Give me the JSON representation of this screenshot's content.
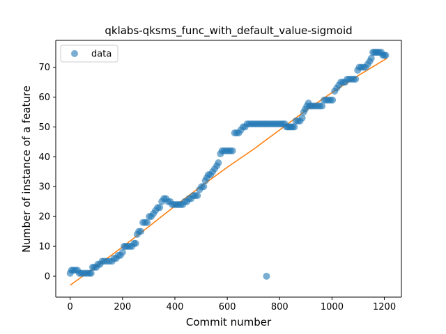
{
  "chart_data": {
    "type": "scatter",
    "title": "qklabs-qksms_func_with_default_value-sigmoid",
    "xlabel": "Commit number",
    "ylabel": "Number of instance of a feature",
    "xlim": [
      -55,
      1265
    ],
    "ylim": [
      -7,
      79
    ],
    "xticks": [
      0,
      200,
      400,
      600,
      800,
      1000,
      1200
    ],
    "yticks": [
      0,
      10,
      20,
      30,
      40,
      50,
      60,
      70
    ],
    "legend": {
      "entries": [
        "data"
      ],
      "placement": "top-left"
    },
    "grid": false,
    "colors": {
      "data": "#1f77b4",
      "fit": "#ff7f0e"
    },
    "series": [
      {
        "name": "data",
        "kind": "scatter",
        "points": [
          [
            0,
            1
          ],
          [
            5,
            2
          ],
          [
            12,
            2
          ],
          [
            20,
            2
          ],
          [
            28,
            2
          ],
          [
            35,
            1
          ],
          [
            42,
            1
          ],
          [
            50,
            1
          ],
          [
            58,
            1
          ],
          [
            66,
            1
          ],
          [
            74,
            1
          ],
          [
            80,
            1
          ],
          [
            86,
            3
          ],
          [
            92,
            3
          ],
          [
            100,
            3
          ],
          [
            106,
            4
          ],
          [
            114,
            4
          ],
          [
            122,
            5
          ],
          [
            130,
            5
          ],
          [
            140,
            5
          ],
          [
            150,
            5
          ],
          [
            160,
            5
          ],
          [
            168,
            6
          ],
          [
            176,
            6
          ],
          [
            184,
            7
          ],
          [
            192,
            7
          ],
          [
            200,
            8
          ],
          [
            206,
            10
          ],
          [
            212,
            10
          ],
          [
            220,
            10
          ],
          [
            228,
            10
          ],
          [
            236,
            10
          ],
          [
            244,
            11
          ],
          [
            250,
            11
          ],
          [
            256,
            14
          ],
          [
            262,
            15
          ],
          [
            270,
            15
          ],
          [
            278,
            18
          ],
          [
            286,
            18
          ],
          [
            294,
            18
          ],
          [
            302,
            20
          ],
          [
            310,
            20
          ],
          [
            318,
            21
          ],
          [
            326,
            22
          ],
          [
            334,
            23
          ],
          [
            342,
            23
          ],
          [
            350,
            25
          ],
          [
            358,
            26
          ],
          [
            366,
            26
          ],
          [
            374,
            25
          ],
          [
            382,
            25
          ],
          [
            390,
            24
          ],
          [
            398,
            24
          ],
          [
            406,
            24
          ],
          [
            414,
            24
          ],
          [
            422,
            24
          ],
          [
            430,
            24
          ],
          [
            438,
            25
          ],
          [
            446,
            25
          ],
          [
            454,
            26
          ],
          [
            462,
            26
          ],
          [
            470,
            27
          ],
          [
            478,
            27
          ],
          [
            486,
            27
          ],
          [
            494,
            29
          ],
          [
            502,
            30
          ],
          [
            510,
            30
          ],
          [
            516,
            32
          ],
          [
            522,
            33
          ],
          [
            528,
            34
          ],
          [
            536,
            34
          ],
          [
            544,
            35
          ],
          [
            552,
            36
          ],
          [
            560,
            37
          ],
          [
            566,
            38
          ],
          [
            574,
            41
          ],
          [
            580,
            42
          ],
          [
            588,
            42
          ],
          [
            596,
            42
          ],
          [
            604,
            42
          ],
          [
            612,
            42
          ],
          [
            620,
            42
          ],
          [
            628,
            48
          ],
          [
            636,
            48
          ],
          [
            644,
            48
          ],
          [
            652,
            49
          ],
          [
            660,
            50
          ],
          [
            668,
            50
          ],
          [
            676,
            51
          ],
          [
            684,
            51
          ],
          [
            692,
            51
          ],
          [
            700,
            51
          ],
          [
            708,
            51
          ],
          [
            716,
            51
          ],
          [
            724,
            51
          ],
          [
            732,
            51
          ],
          [
            740,
            51
          ],
          [
            748,
            51
          ],
          [
            756,
            51
          ],
          [
            764,
            51
          ],
          [
            772,
            51
          ],
          [
            780,
            51
          ],
          [
            788,
            51
          ],
          [
            796,
            51
          ],
          [
            804,
            51
          ],
          [
            812,
            51
          ],
          [
            820,
            51
          ],
          [
            826,
            50
          ],
          [
            832,
            50
          ],
          [
            838,
            50
          ],
          [
            844,
            50
          ],
          [
            850,
            50
          ],
          [
            856,
            50
          ],
          [
            862,
            52
          ],
          [
            870,
            52
          ],
          [
            878,
            52
          ],
          [
            886,
            53
          ],
          [
            892,
            55
          ],
          [
            898,
            56
          ],
          [
            904,
            57
          ],
          [
            910,
            58
          ],
          [
            916,
            57
          ],
          [
            922,
            57
          ],
          [
            930,
            57
          ],
          [
            938,
            57
          ],
          [
            946,
            57
          ],
          [
            954,
            57
          ],
          [
            962,
            57
          ],
          [
            970,
            59
          ],
          [
            978,
            59
          ],
          [
            986,
            59
          ],
          [
            994,
            59
          ],
          [
            1002,
            59
          ],
          [
            1010,
            62
          ],
          [
            1018,
            63
          ],
          [
            1026,
            64
          ],
          [
            1034,
            65
          ],
          [
            1042,
            65
          ],
          [
            1050,
            65
          ],
          [
            1058,
            66
          ],
          [
            1066,
            66
          ],
          [
            1074,
            66
          ],
          [
            1082,
            66
          ],
          [
            1090,
            66
          ],
          [
            1098,
            69
          ],
          [
            1104,
            70
          ],
          [
            1112,
            70
          ],
          [
            1120,
            70
          ],
          [
            1128,
            70
          ],
          [
            1136,
            71
          ],
          [
            1144,
            72
          ],
          [
            1150,
            73
          ],
          [
            1156,
            75
          ],
          [
            1162,
            75
          ],
          [
            1168,
            75
          ],
          [
            1174,
            75
          ],
          [
            1180,
            75
          ],
          [
            1188,
            75
          ],
          [
            1194,
            74
          ],
          [
            1200,
            74
          ],
          [
            1205,
            74
          ],
          [
            750,
            0
          ]
        ]
      },
      {
        "kind": "line",
        "points": [
          [
            0,
            -3
          ],
          [
            100,
            3.3
          ],
          [
            200,
            9.8
          ],
          [
            300,
            16.6
          ],
          [
            400,
            23.5
          ],
          [
            500,
            30.1
          ],
          [
            600,
            36.5
          ],
          [
            700,
            42.5
          ],
          [
            800,
            49
          ],
          [
            900,
            55.5
          ],
          [
            1000,
            61.5
          ],
          [
            1100,
            67.2
          ],
          [
            1210,
            73
          ]
        ]
      }
    ]
  }
}
